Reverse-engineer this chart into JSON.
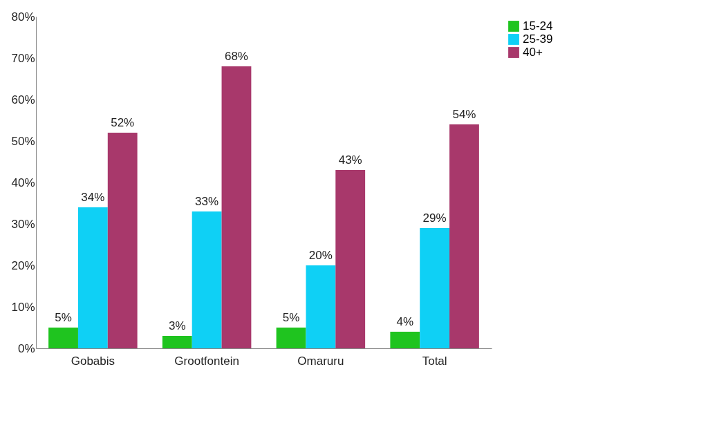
{
  "chart_data": {
    "type": "bar",
    "categories": [
      "Gobabis",
      "Grootfontein",
      "Omaruru",
      "Total"
    ],
    "series": [
      {
        "name": "15-24",
        "color": "#1fc41f",
        "values": [
          5,
          3,
          5,
          4
        ],
        "value_labels": [
          "5%",
          "3%",
          "5%",
          "4%"
        ]
      },
      {
        "name": "25-39",
        "color": "#0fd0f5",
        "values": [
          34,
          33,
          20,
          29
        ],
        "value_labels": [
          "34%",
          "33%",
          "20%",
          "29%"
        ]
      },
      {
        "name": "40+",
        "color": "#a8386b",
        "values": [
          52,
          68,
          43,
          54
        ],
        "value_labels": [
          "52%",
          "68%",
          "43%",
          "54%"
        ]
      }
    ],
    "ylim": [
      0,
      80
    ],
    "yticks": [
      {
        "value": 0,
        "label": "0%"
      },
      {
        "value": 10,
        "label": "10%"
      },
      {
        "value": 20,
        "label": "20%"
      },
      {
        "value": 30,
        "label": "30%"
      },
      {
        "value": 40,
        "label": "40%"
      },
      {
        "value": 50,
        "label": "50%"
      },
      {
        "value": 60,
        "label": "60%"
      },
      {
        "value": 70,
        "label": "70%"
      },
      {
        "value": 80,
        "label": "80%"
      }
    ],
    "grid": false,
    "legend": "right"
  }
}
